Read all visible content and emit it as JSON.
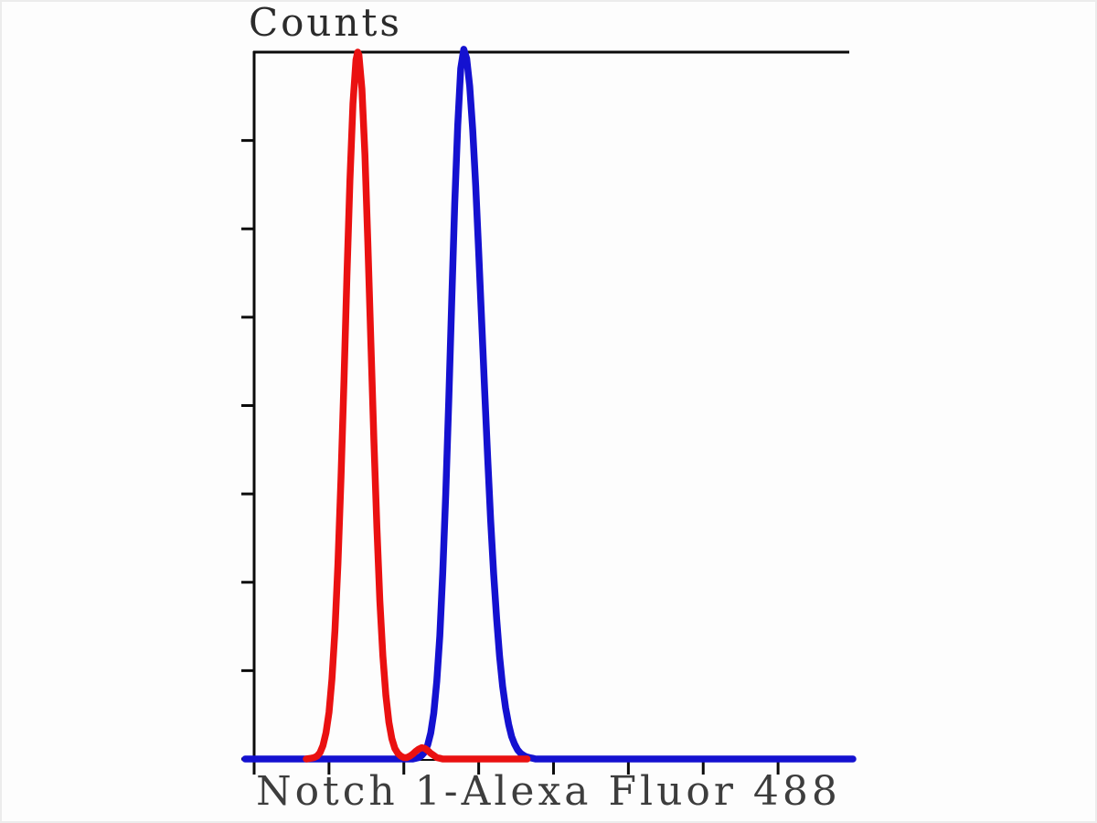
{
  "chart_data": {
    "type": "line",
    "subtype": "flow-cytometry-histogram-overlay",
    "title": "",
    "ylabel": "Counts",
    "xlabel": "Notch 1-Alexa Fluor 488",
    "grid": false,
    "legend": "none",
    "background_color": "#fdfdfd",
    "axis_color": "#0b0b0b",
    "label_color": "#3d3d3d",
    "x_axis": {
      "min": 0,
      "max": 100,
      "tick_positions": [
        0,
        12.5,
        25,
        37.5,
        50,
        62.5,
        75,
        87.5
      ],
      "tick_labels": [],
      "labels_visible": false
    },
    "y_axis": {
      "min": 0,
      "max": 100,
      "tick_positions": [
        0,
        12.5,
        25,
        37.5,
        50,
        62.5,
        75,
        87.5
      ],
      "tick_labels": [],
      "labels_visible": false
    },
    "series": [
      {
        "name": "blue-peak",
        "color": "#1411d0",
        "stroke_width": 7.5,
        "peak_x": 35.0,
        "peak_height": 100.4,
        "points": [
          [
            -1.5,
            0
          ],
          [
            5,
            0
          ],
          [
            12,
            0
          ],
          [
            20,
            0
          ],
          [
            25,
            0
          ],
          [
            26.5,
            0
          ],
          [
            27,
            0.1
          ],
          [
            27.5,
            0.2
          ],
          [
            28,
            0.5
          ],
          [
            28.5,
            1.0
          ],
          [
            29,
            2.0
          ],
          [
            29.5,
            3.7
          ],
          [
            30,
            6.5
          ],
          [
            30.5,
            11.0
          ],
          [
            31,
            17.4
          ],
          [
            31.5,
            26.3
          ],
          [
            32,
            37.5
          ],
          [
            32.5,
            50.7
          ],
          [
            33,
            64.6
          ],
          [
            33.5,
            78.5
          ],
          [
            34,
            89.6
          ],
          [
            34.5,
            97.7
          ],
          [
            35,
            100.4
          ],
          [
            35.5,
            99.1
          ],
          [
            36,
            95.2
          ],
          [
            36.5,
            89.0
          ],
          [
            37,
            81.0
          ],
          [
            37.5,
            71.8
          ],
          [
            38,
            61.9
          ],
          [
            38.5,
            52.0
          ],
          [
            39,
            42.5
          ],
          [
            39.5,
            33.8
          ],
          [
            40,
            26.2
          ],
          [
            40.5,
            19.8
          ],
          [
            41,
            14.5
          ],
          [
            41.5,
            10.3
          ],
          [
            42,
            7.2
          ],
          [
            42.5,
            4.9
          ],
          [
            43,
            3.2
          ],
          [
            43.5,
            2.1
          ],
          [
            44,
            1.3
          ],
          [
            44.5,
            0.8
          ],
          [
            45,
            0.5
          ],
          [
            45.5,
            0.3
          ],
          [
            46,
            0.2
          ],
          [
            46.5,
            0.1
          ],
          [
            47,
            0
          ],
          [
            50,
            0
          ],
          [
            58,
            0
          ],
          [
            68,
            0
          ],
          [
            80,
            0
          ],
          [
            92,
            0
          ],
          [
            100,
            0
          ]
        ]
      },
      {
        "name": "red-peak",
        "color": "#ea1111",
        "stroke_width": 7.5,
        "peak_x": 17.3,
        "peak_height": 100,
        "points": [
          [
            8.7,
            0
          ],
          [
            9.5,
            0.1
          ],
          [
            10,
            0.2
          ],
          [
            10.5,
            0.4
          ],
          [
            11,
            0.9
          ],
          [
            11.5,
            1.9
          ],
          [
            12,
            3.7
          ],
          [
            12.5,
            6.6
          ],
          [
            13,
            11.3
          ],
          [
            13.5,
            18.2
          ],
          [
            14,
            27.7
          ],
          [
            14.5,
            39.7
          ],
          [
            15,
            53.6
          ],
          [
            15.5,
            68.3
          ],
          [
            16,
            81.9
          ],
          [
            16.5,
            92.7
          ],
          [
            17,
            98.9
          ],
          [
            17.3,
            100
          ],
          [
            17.5,
            99.6
          ],
          [
            18,
            94.8
          ],
          [
            18.5,
            85.5
          ],
          [
            19,
            72.9
          ],
          [
            19.5,
            58.9
          ],
          [
            20,
            45.1
          ],
          [
            20.5,
            32.7
          ],
          [
            21,
            22.4
          ],
          [
            21.5,
            14.6
          ],
          [
            22,
            9.0
          ],
          [
            22.5,
            5.2
          ],
          [
            23,
            2.9
          ],
          [
            23.5,
            1.5
          ],
          [
            24,
            0.8
          ],
          [
            24.5,
            0.4
          ],
          [
            25,
            0.2
          ],
          [
            25.5,
            0.2
          ],
          [
            26,
            0.4
          ],
          [
            26.5,
            0.7
          ],
          [
            27,
            1.1
          ],
          [
            27.5,
            1.4
          ],
          [
            28,
            1.6
          ],
          [
            28.5,
            1.5
          ],
          [
            29,
            1.2
          ],
          [
            29.5,
            0.8
          ],
          [
            30,
            0.5
          ],
          [
            30.5,
            0.2
          ],
          [
            31,
            0.1
          ],
          [
            31.5,
            0
          ],
          [
            33,
            0
          ],
          [
            36,
            0
          ],
          [
            40,
            0
          ],
          [
            43,
            0
          ],
          [
            45.6,
            0
          ]
        ]
      }
    ]
  }
}
